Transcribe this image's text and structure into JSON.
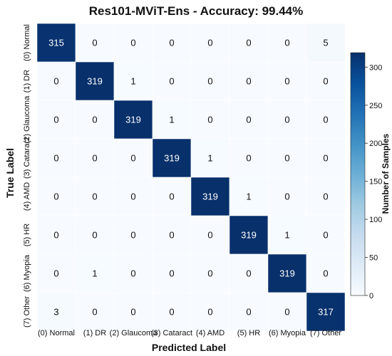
{
  "chart_data": {
    "type": "heatmap",
    "title": "Res101-MViT-Ens - Accuracy: 99.44%",
    "xlabel": "Predicted Label",
    "ylabel": "True Label",
    "x_categories": [
      "(0) Normal",
      "(1) DR",
      "(2) Glaucoma",
      "(3) Cataract",
      "(4) AMD",
      "(5) HR",
      "(6) Myopia",
      "(7) Other"
    ],
    "y_categories": [
      "(0) Normal",
      "(1) DR",
      "(2) Glaucoma",
      "(3) Cataract",
      "(4) AMD",
      "(5) HR",
      "(6) Myopia",
      "(7) Other"
    ],
    "values": [
      [
        315,
        0,
        0,
        0,
        0,
        0,
        0,
        5
      ],
      [
        0,
        319,
        1,
        0,
        0,
        0,
        0,
        0
      ],
      [
        0,
        0,
        319,
        1,
        0,
        0,
        0,
        0
      ],
      [
        0,
        0,
        0,
        319,
        1,
        0,
        0,
        0
      ],
      [
        0,
        0,
        0,
        0,
        319,
        1,
        0,
        0
      ],
      [
        0,
        0,
        0,
        0,
        0,
        319,
        1,
        0
      ],
      [
        0,
        1,
        0,
        0,
        0,
        0,
        319,
        0
      ],
      [
        3,
        0,
        0,
        0,
        0,
        0,
        0,
        317
      ]
    ],
    "colorbar": {
      "label": "Number of Samples",
      "range": [
        0,
        319
      ],
      "ticks": [
        0,
        50,
        100,
        150,
        200,
        250,
        300
      ],
      "colormap": "Blues",
      "low_color": "#f7fbff",
      "high_color": "#08306b"
    }
  }
}
